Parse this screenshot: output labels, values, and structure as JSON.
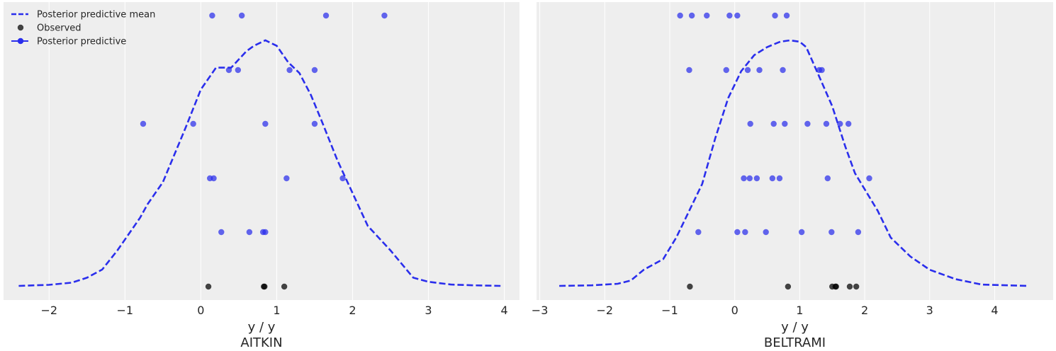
{
  "legend": {
    "placement": "upper-left",
    "items": [
      {
        "label": "Posterior predictive mean",
        "style": "dashed-line",
        "color": "#2a2eec"
      },
      {
        "label": "Observed",
        "style": "dot",
        "color": "#000000"
      },
      {
        "label": "Posterior predictive",
        "style": "line-dot",
        "color": "#2a2eec"
      }
    ]
  },
  "colors": {
    "background": "#eeeeee",
    "grid": "#ffffff",
    "predictive": "#2a2eec",
    "observed": "#000000"
  },
  "chart_data": [
    {
      "type": "line",
      "title": "AITKIN",
      "xlabel": "y / y",
      "ylabel": "",
      "grid": true,
      "xlim": [
        -2.6,
        4.2
      ],
      "xticks": [
        -2,
        -1,
        0,
        1,
        2,
        3,
        4
      ],
      "xtick_labels": [
        "−2",
        "−1",
        "0",
        "1",
        "2",
        "3",
        "4"
      ],
      "series": [
        {
          "kind": "mean-density",
          "x": [
            -2.4,
            -2.0,
            -1.7,
            -1.5,
            -1.3,
            -1.1,
            -0.8,
            -0.7,
            -0.5,
            -0.2,
            0.0,
            0.2,
            0.4,
            0.6,
            0.7,
            0.85,
            1.0,
            1.15,
            1.3,
            1.45,
            1.6,
            1.8,
            2.0,
            2.2,
            2.5,
            2.8,
            3.0,
            3.3,
            3.6,
            3.95
          ],
          "y": [
            0.0,
            0.004,
            0.012,
            0.03,
            0.06,
            0.13,
            0.25,
            0.3,
            0.38,
            0.58,
            0.72,
            0.8,
            0.8,
            0.86,
            0.88,
            0.9,
            0.88,
            0.82,
            0.78,
            0.7,
            0.6,
            0.46,
            0.34,
            0.22,
            0.13,
            0.03,
            0.015,
            0.005,
            0.002,
            0.0
          ]
        },
        {
          "kind": "predictive-rows",
          "rows": [
            [
              0.15,
              0.54,
              1.65,
              2.42
            ],
            [
              0.37,
              0.49,
              1.17,
              1.5
            ],
            [
              -0.76,
              -0.1,
              0.85,
              1.5
            ],
            [
              0.12,
              0.17,
              1.13,
              1.87
            ],
            [
              0.27,
              0.64,
              0.82,
              0.85
            ]
          ]
        },
        {
          "kind": "observed",
          "x": [
            0.1,
            0.83,
            0.84,
            1.1
          ]
        }
      ]
    },
    {
      "type": "line",
      "title": "BELTRAMI",
      "xlabel": "y / y",
      "ylabel": "",
      "grid": true,
      "xlim": [
        -3.05,
        4.9
      ],
      "xticks": [
        -3,
        -2,
        -1,
        0,
        1,
        2,
        3,
        4
      ],
      "xtick_labels": [
        "−3",
        "−2",
        "−1",
        "0",
        "1",
        "2",
        "3",
        "4"
      ],
      "series": [
        {
          "kind": "mean-density",
          "x": [
            -2.7,
            -2.2,
            -1.8,
            -1.6,
            -1.4,
            -1.1,
            -0.9,
            -0.7,
            -0.5,
            -0.3,
            -0.1,
            0.1,
            0.3,
            0.5,
            0.7,
            0.85,
            1.0,
            1.1,
            1.3,
            1.5,
            1.7,
            1.85,
            2.0,
            2.2,
            2.4,
            2.7,
            3.0,
            3.4,
            3.8,
            4.5
          ],
          "y": [
            0.0,
            0.002,
            0.008,
            0.02,
            0.06,
            0.1,
            0.18,
            0.28,
            0.38,
            0.55,
            0.7,
            0.8,
            0.86,
            0.89,
            0.91,
            0.915,
            0.91,
            0.89,
            0.78,
            0.67,
            0.52,
            0.42,
            0.36,
            0.28,
            0.18,
            0.11,
            0.06,
            0.025,
            0.005,
            0.0
          ]
        },
        {
          "kind": "predictive-rows",
          "rows": [
            [
              -0.84,
              -0.66,
              -0.43,
              -0.08,
              0.04,
              0.62,
              0.8
            ],
            [
              -0.7,
              -0.13,
              0.2,
              0.38,
              0.74,
              1.3,
              1.34
            ],
            [
              0.24,
              0.6,
              0.77,
              1.12,
              1.41,
              1.62,
              1.75
            ],
            [
              0.14,
              0.23,
              0.34,
              0.58,
              0.69,
              1.43,
              2.07
            ],
            [
              -0.56,
              0.04,
              0.16,
              0.48,
              1.03,
              1.49,
              1.9
            ]
          ]
        },
        {
          "kind": "observed",
          "x": [
            -0.69,
            0.82,
            1.5,
            1.55,
            1.56,
            1.77,
            1.87
          ]
        }
      ]
    }
  ]
}
